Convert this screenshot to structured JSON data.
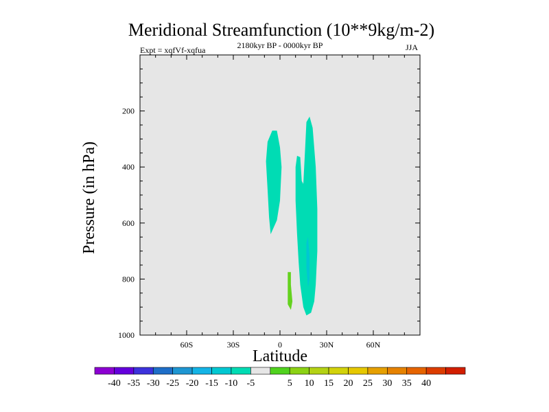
{
  "chart_data": {
    "type": "contour",
    "title": "Meridional Streamfunction (10**9kg/m-2)",
    "left_label": "Expt = xqfVf-xqfua",
    "center_label": "2180kyr BP - 0000kyr BP",
    "right_label": "JJA",
    "xlabel": "Latitude",
    "ylabel": "Pressure (in hPa)",
    "xlim": [
      -90,
      90
    ],
    "ylim": [
      1000,
      0
    ],
    "x_ticks": [
      {
        "value": -60,
        "label": "60S"
      },
      {
        "value": -30,
        "label": "30S"
      },
      {
        "value": 0,
        "label": "0"
      },
      {
        "value": 30,
        "label": "30N"
      },
      {
        "value": 60,
        "label": "60N"
      }
    ],
    "y_ticks": [
      {
        "value": 200,
        "label": "200"
      },
      {
        "value": 400,
        "label": "400"
      },
      {
        "value": 600,
        "label": "600"
      },
      {
        "value": 800,
        "label": "800"
      },
      {
        "value": 1000,
        "label": "1000"
      }
    ],
    "regions": [
      {
        "name": "cell-a",
        "level": -5,
        "color": "#00dcb4",
        "points": [
          [
            -8,
            310
          ],
          [
            -5,
            270
          ],
          [
            -2,
            270
          ],
          [
            0,
            330
          ],
          [
            1,
            400
          ],
          [
            0,
            520
          ],
          [
            -2,
            590
          ],
          [
            -6,
            640
          ],
          [
            -7,
            580
          ],
          [
            -8,
            480
          ],
          [
            -9,
            380
          ]
        ]
      },
      {
        "name": "cell-b",
        "level": -5,
        "color": "#00dcb4",
        "points": [
          [
            17,
            240
          ],
          [
            19,
            220
          ],
          [
            21,
            260
          ],
          [
            23,
            400
          ],
          [
            24,
            550
          ],
          [
            24,
            700
          ],
          [
            23,
            820
          ],
          [
            22,
            880
          ],
          [
            20,
            920
          ],
          [
            17,
            930
          ],
          [
            15,
            900
          ],
          [
            13,
            820
          ],
          [
            12,
            740
          ],
          [
            11,
            640
          ],
          [
            10,
            520
          ],
          [
            10,
            400
          ],
          [
            11,
            360
          ],
          [
            13,
            365
          ],
          [
            14,
            450
          ],
          [
            15,
            460
          ],
          [
            16,
            350
          ]
        ]
      },
      {
        "name": "cell-b-core",
        "level": -10,
        "color": "#00c8d2",
        "points": [
          [
            17,
            670
          ],
          [
            18,
            650
          ],
          [
            19,
            720
          ],
          [
            19,
            800
          ],
          [
            18,
            830
          ],
          [
            17,
            760
          ]
        ]
      },
      {
        "name": "cell-c",
        "level": 10,
        "color": "#64d21e",
        "points": [
          [
            5,
            775
          ],
          [
            7,
            775
          ],
          [
            7,
            820
          ],
          [
            8,
            880
          ],
          [
            7,
            910
          ],
          [
            5,
            890
          ],
          [
            5,
            830
          ]
        ]
      }
    ],
    "colorbar": {
      "colors": [
        "#8c00d2",
        "#6400dc",
        "#3c32dc",
        "#1e6ec8",
        "#1e96d2",
        "#14b4e6",
        "#00c8d2",
        "#00dcb4",
        "#e6e6e6",
        "#50d21e",
        "#8cd214",
        "#b4d214",
        "#d2d20a",
        "#e6c800",
        "#e6a000",
        "#e68200",
        "#e66400",
        "#dc3c00",
        "#d21e00"
      ],
      "labels": [
        "-40",
        "-35",
        "-30",
        "-25",
        "-20",
        "-15",
        "-10",
        "-5",
        "5",
        "10",
        "15",
        "20",
        "25",
        "30",
        "35",
        "40"
      ]
    }
  }
}
